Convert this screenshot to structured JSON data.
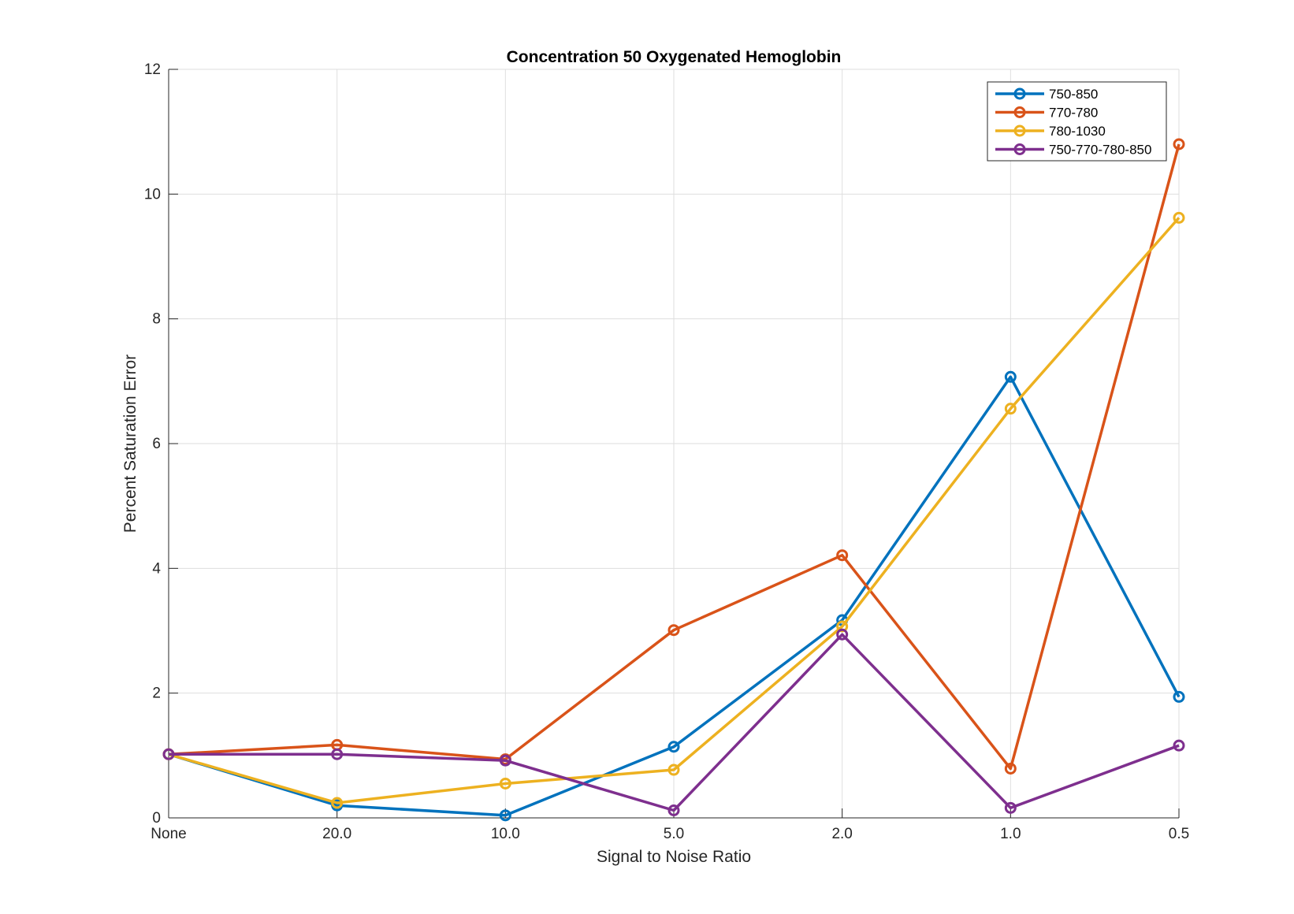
{
  "chart_data": {
    "type": "line",
    "title": "Concentration 50 Oxygenated Hemoglobin",
    "xlabel": "Signal to Noise Ratio",
    "ylabel": "Percent Saturation Error",
    "categories": [
      "None",
      "20.0",
      "10.0",
      "5.0",
      "2.0",
      "1.0",
      "0.5"
    ],
    "ylim": [
      0,
      12
    ],
    "yticks": [
      0,
      2,
      4,
      6,
      8,
      10,
      12
    ],
    "grid": true,
    "legend_position": "top-right",
    "marker": "circle",
    "series": [
      {
        "name": "750-850",
        "color": "#0072BD",
        "values": [
          1.02,
          0.2,
          0.04,
          1.14,
          3.17,
          7.07,
          1.94
        ]
      },
      {
        "name": "770-780",
        "color": "#D95319",
        "values": [
          1.02,
          1.17,
          0.94,
          3.01,
          4.21,
          0.79,
          10.8
        ]
      },
      {
        "name": "780-1030",
        "color": "#EDB120",
        "values": [
          1.02,
          0.24,
          0.55,
          0.77,
          3.07,
          6.56,
          9.62
        ]
      },
      {
        "name": "750-770-780-850",
        "color": "#7E2F8E",
        "values": [
          1.02,
          1.02,
          0.92,
          0.12,
          2.94,
          0.16,
          1.16
        ]
      }
    ]
  }
}
